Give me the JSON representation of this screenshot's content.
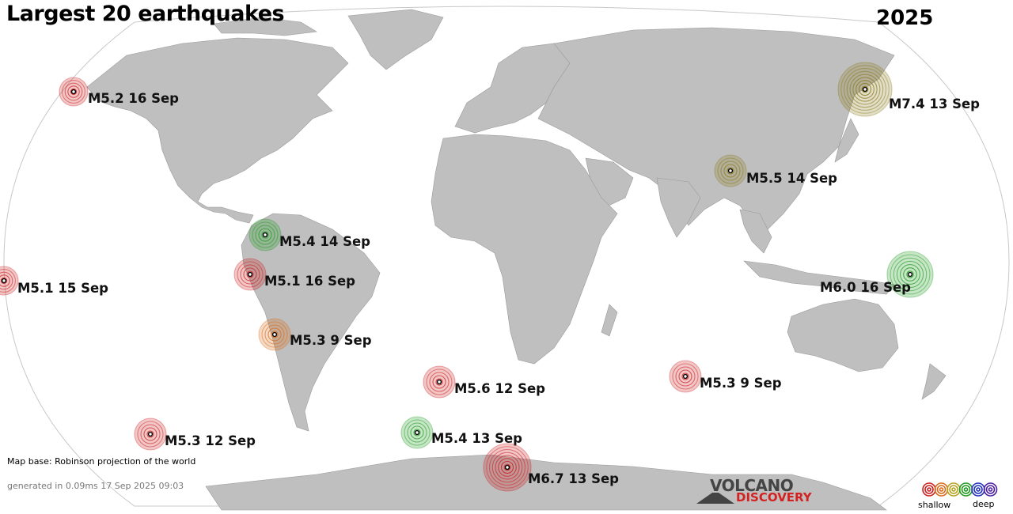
{
  "header": {
    "title": "Largest 20 earthquakes",
    "year": "2025"
  },
  "colors": {
    "land": "#bfbfbf",
    "ocean": "#ffffff",
    "border": "#888888",
    "shallow": "#cc1f1f",
    "intermediate": "#d96a18",
    "medium": "#8a7a1e",
    "deepish": "#1f9b1f",
    "deep": "#1f2fbf"
  },
  "earthquakes": [
    {
      "label": "M5.2 16 Sep",
      "magnitude": 5.2,
      "date": "16 Sep",
      "depth_class": "shallow"
    },
    {
      "label": "M7.4 13 Sep",
      "magnitude": 7.4,
      "date": "13 Sep",
      "depth_class": "medium"
    },
    {
      "label": "M5.5 14 Sep",
      "magnitude": 5.5,
      "date": "14 Sep",
      "depth_class": "medium"
    },
    {
      "label": "M5.4 14 Sep",
      "magnitude": 5.4,
      "date": "14 Sep",
      "depth_class": "deepish"
    },
    {
      "label": "M5.1 16 Sep",
      "magnitude": 5.1,
      "date": "16 Sep",
      "depth_class": "shallow"
    },
    {
      "label": "M5.1 15 Sep",
      "magnitude": 5.1,
      "date": "15 Sep",
      "depth_class": "shallow"
    },
    {
      "label": "M6.0 16 Sep",
      "magnitude": 6.0,
      "date": "16 Sep",
      "depth_class": "deepish"
    },
    {
      "label": "M5.3  9 Sep",
      "magnitude": 5.3,
      "date": "9 Sep",
      "depth_class": "intermediate"
    },
    {
      "label": "M5.6 12 Sep",
      "magnitude": 5.6,
      "date": "12 Sep",
      "depth_class": "shallow"
    },
    {
      "label": "M5.3  9 Sep",
      "magnitude": 5.3,
      "date": "9 Sep",
      "depth_class": "shallow"
    },
    {
      "label": "M5.3 12 Sep",
      "magnitude": 5.3,
      "date": "12 Sep",
      "depth_class": "shallow"
    },
    {
      "label": "M5.4 13 Sep",
      "magnitude": 5.4,
      "date": "13 Sep",
      "depth_class": "deepish"
    },
    {
      "label": "M6.7 13 Sep",
      "magnitude": 6.7,
      "date": "13 Sep",
      "depth_class": "shallow"
    }
  ],
  "footer": {
    "map_base": "Map base: Robinson projection of the world",
    "generated": "generated in 0.09ms 17 Sep 2025 09:03"
  },
  "logo": {
    "word1": "VOLCANO",
    "word2": "DISCOVERY"
  },
  "legend": {
    "shallow_label": "shallow",
    "deep_label": "deep",
    "scale_colors": [
      "#cc1f1f",
      "#d96a18",
      "#b5a21e",
      "#1f9b1f",
      "#1f2fbf",
      "#4b1fa0"
    ]
  }
}
